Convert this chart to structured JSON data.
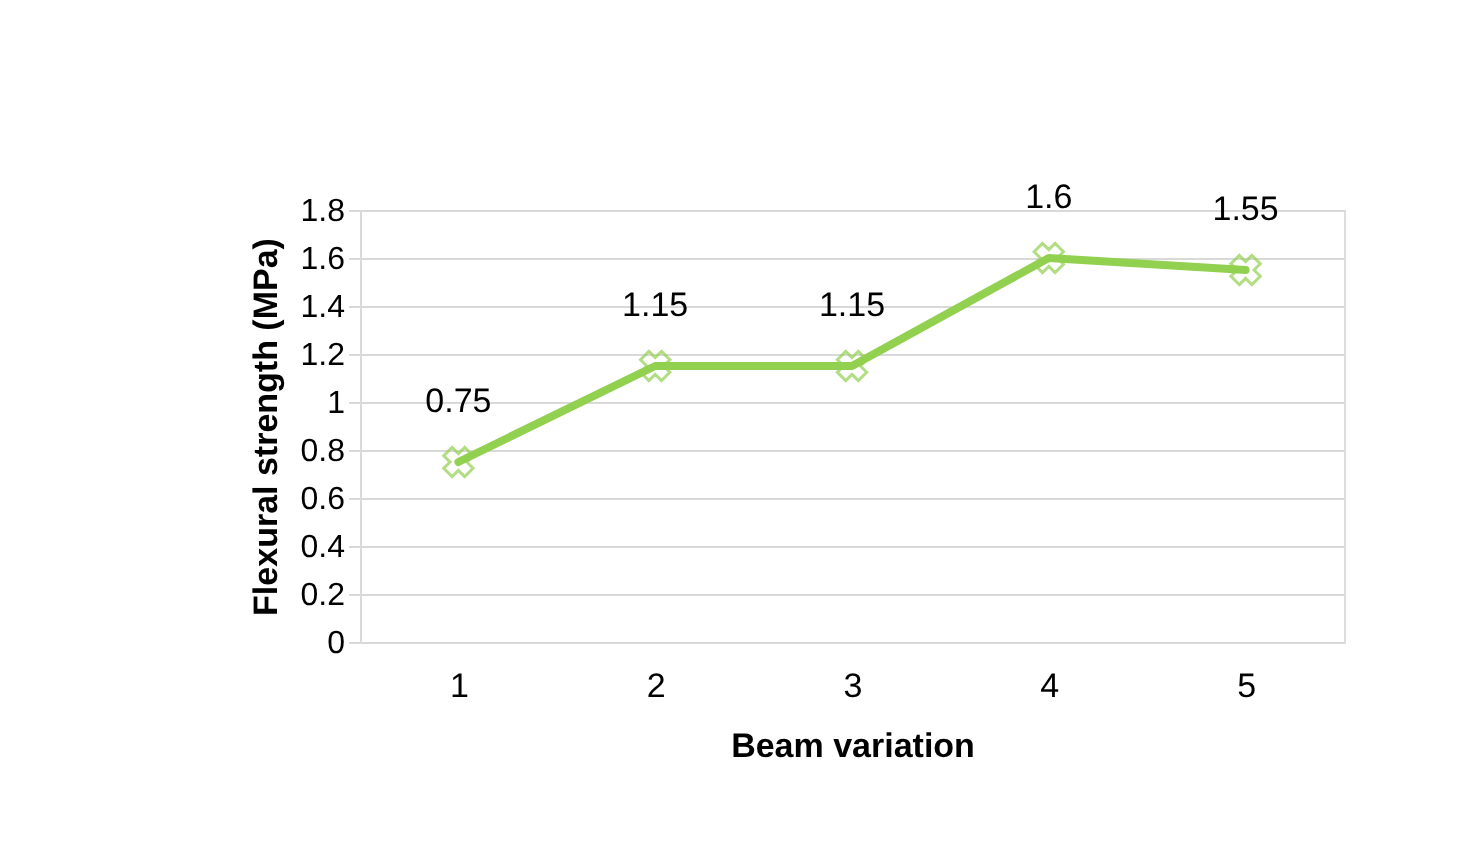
{
  "chart_data": {
    "type": "line",
    "xlabel": "Beam variation",
    "ylabel": "Flexural strength (MPa)",
    "categories": [
      "1",
      "2",
      "3",
      "4",
      "5"
    ],
    "values": [
      0.75,
      1.15,
      1.15,
      1.6,
      1.55
    ],
    "color": "#92d050",
    "ylim": [
      0,
      1.8
    ],
    "yticks": [
      0,
      0.2,
      0.4,
      0.6,
      0.8,
      1,
      1.2,
      1.4,
      1.6,
      1.8
    ],
    "grid": "y",
    "marker": "cross",
    "line_style": "solid",
    "data_labels": true
  }
}
